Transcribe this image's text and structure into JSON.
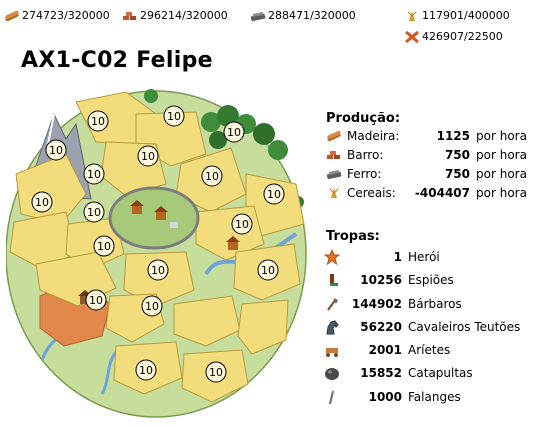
{
  "resources": [
    {
      "name": "wood-icon",
      "text": "274723/320000",
      "color": "#b5651d"
    },
    {
      "name": "clay-icon",
      "text": "296214/320000",
      "color": "#c0562b"
    },
    {
      "name": "iron-icon",
      "text": "288471/320000",
      "color": "#6b6b6b"
    },
    {
      "name": "crop-icon",
      "text": "117901/400000",
      "color": "#d89b2b"
    },
    {
      "name": "crop-consumption-icon",
      "text": "426907/22500",
      "color": "#d9541e"
    }
  ],
  "village": {
    "name": "AX1-C02 Felipe"
  },
  "map": {
    "fields": [
      {
        "level": "10"
      },
      {
        "level": "10"
      },
      {
        "level": "10"
      },
      {
        "level": "10"
      },
      {
        "level": "10"
      },
      {
        "level": "10"
      },
      {
        "level": "10"
      },
      {
        "level": "10"
      },
      {
        "level": "10"
      },
      {
        "level": "10"
      },
      {
        "level": "10"
      },
      {
        "level": "10"
      },
      {
        "level": "10"
      },
      {
        "level": "10"
      },
      {
        "level": "10"
      },
      {
        "level": "10"
      },
      {
        "level": "10"
      },
      {
        "level": "10"
      }
    ],
    "colors": {
      "crop": "#f2dc7b",
      "meadow": "#c7dd9c",
      "water": "#6fa3d8",
      "forest": "#3f8c3a",
      "rock": "#9aa3ad",
      "clay": "#e2874a"
    }
  },
  "production": {
    "title": "Produção:",
    "unit": "por hora",
    "rows": [
      {
        "icon": "wood-icon",
        "label": "Madeira:",
        "value": "1125"
      },
      {
        "icon": "clay-icon",
        "label": "Barro:",
        "value": "750"
      },
      {
        "icon": "iron-icon",
        "label": "Ferro:",
        "value": "750"
      },
      {
        "icon": "crop-icon",
        "label": "Cereais:",
        "value": "-404407"
      }
    ]
  },
  "troops": {
    "title": "Tropas:",
    "rows": [
      {
        "icon": "hero-icon",
        "count": "1",
        "name": "Herói"
      },
      {
        "icon": "spy-icon",
        "count": "10256",
        "name": "Espiões"
      },
      {
        "icon": "axe-icon",
        "count": "144902",
        "name": "Bárbaros"
      },
      {
        "icon": "horse-icon",
        "count": "56220",
        "name": "Cavaleiros Teutões"
      },
      {
        "icon": "ram-icon",
        "count": "2001",
        "name": "Aríetes"
      },
      {
        "icon": "catapult-icon",
        "count": "15852",
        "name": "Catapultas"
      },
      {
        "icon": "phalanx-icon",
        "count": "1000",
        "name": "Falanges"
      }
    ]
  }
}
